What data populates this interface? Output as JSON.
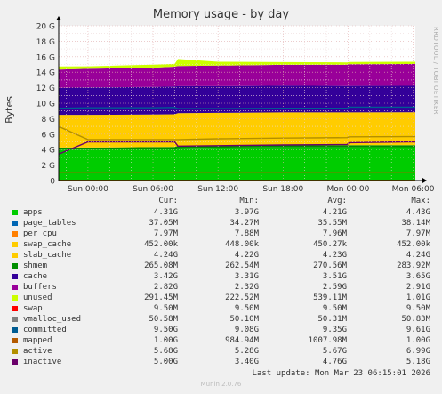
{
  "header": {
    "title": "Memory usage - by day",
    "side_text": "RRDTOOL / TOBI OETIKER",
    "footer": "Last update: Mon Mar 23 06:15:01 2026",
    "generator": "Munin 2.0.76"
  },
  "legend_headers": [
    "Cur:",
    "Min:",
    "Avg:",
    "Max:"
  ],
  "legend": [
    {
      "name": "apps",
      "color": "#00cc00",
      "cur": "4.31G",
      "min": "3.97G",
      "avg": "4.21G",
      "max": "4.43G"
    },
    {
      "name": "page_tables",
      "color": "#0066b3",
      "cur": "37.05M",
      "min": "34.27M",
      "avg": "35.55M",
      "max": "38.14M"
    },
    {
      "name": "per_cpu",
      "color": "#ff8000",
      "cur": "7.97M",
      "min": "7.88M",
      "avg": "7.96M",
      "max": "7.97M"
    },
    {
      "name": "swap_cache",
      "color": "#ffcc00",
      "cur": "452.00k",
      "min": "448.00k",
      "avg": "450.27k",
      "max": "452.00k"
    },
    {
      "name": "slab_cache",
      "color": "#ffcc00",
      "cur": "4.24G",
      "min": "4.22G",
      "avg": "4.23G",
      "max": "4.24G"
    },
    {
      "name": "shmem",
      "color": "#008f00",
      "cur": "265.08M",
      "min": "262.54M",
      "avg": "270.56M",
      "max": "283.92M"
    },
    {
      "name": "cache",
      "color": "#330099",
      "cur": "3.42G",
      "min": "3.31G",
      "avg": "3.51G",
      "max": "3.65G"
    },
    {
      "name": "buffers",
      "color": "#990099",
      "cur": "2.82G",
      "min": "2.32G",
      "avg": "2.59G",
      "max": "2.91G"
    },
    {
      "name": "unused",
      "color": "#ccff00",
      "cur": "291.45M",
      "min": "222.52M",
      "avg": "539.11M",
      "max": "1.01G"
    },
    {
      "name": "swap",
      "color": "#ff0000",
      "cur": "9.50M",
      "min": "9.50M",
      "avg": "9.50M",
      "max": "9.50M"
    },
    {
      "name": "vmalloc_used",
      "color": "#808080",
      "cur": "50.58M",
      "min": "50.10M",
      "avg": "50.31M",
      "max": "50.83M"
    },
    {
      "name": "committed",
      "color": "#005c92",
      "cur": "9.50G",
      "min": "9.08G",
      "avg": "9.35G",
      "max": "9.61G"
    },
    {
      "name": "mapped",
      "color": "#b35a00",
      "cur": "1.00G",
      "min": "984.94M",
      "avg": "1007.98M",
      "max": "1.00G"
    },
    {
      "name": "active",
      "color": "#b38f00",
      "cur": "5.68G",
      "min": "5.28G",
      "avg": "5.67G",
      "max": "6.99G"
    },
    {
      "name": "inactive",
      "color": "#6b006b",
      "cur": "5.00G",
      "min": "3.40G",
      "avg": "4.76G",
      "max": "5.18G"
    }
  ],
  "chart_data": {
    "type": "area",
    "title": "Memory usage - by day",
    "ylabel": "Bytes",
    "ylim": [
      0,
      20
    ],
    "y_unit": "G",
    "y_ticks": [
      "0",
      "2 G",
      "4 G",
      "6 G",
      "8 G",
      "10 G",
      "12 G",
      "14 G",
      "16 G",
      "18 G",
      "20 G"
    ],
    "x_ticks": [
      "Sun 00:00",
      "Sun 06:00",
      "Sun 12:00",
      "Sun 18:00",
      "Mon 00:00",
      "Mon 06:00"
    ],
    "x_tick_hours": [
      0,
      6,
      12,
      18,
      24,
      30
    ],
    "xlim_hours": [
      -2.7,
      30.2
    ],
    "x": [
      -2.7,
      0.0,
      6.0,
      8.0,
      8.3,
      12.0,
      18.0,
      23.9,
      24.1,
      29.5,
      30.2
    ],
    "stacked_series": [
      {
        "name": "apps",
        "color": "#00cc00",
        "values": [
          4.0,
          4.0,
          4.05,
          4.05,
          4.2,
          4.25,
          4.3,
          4.3,
          4.3,
          4.31,
          4.31
        ]
      },
      {
        "name": "shmem",
        "color": "#008f00",
        "values": [
          0.27,
          0.27,
          0.27,
          0.28,
          0.27,
          0.27,
          0.27,
          0.26,
          0.27,
          0.27,
          0.27
        ]
      },
      {
        "name": "slab_cache",
        "color": "#ffcc00",
        "values": [
          4.22,
          4.22,
          4.22,
          4.23,
          4.23,
          4.23,
          4.23,
          4.24,
          4.24,
          4.24,
          4.24
        ]
      },
      {
        "name": "cache",
        "color": "#330099",
        "values": [
          3.5,
          3.55,
          3.55,
          3.6,
          3.5,
          3.45,
          3.45,
          3.42,
          3.42,
          3.42,
          3.42
        ]
      },
      {
        "name": "buffers",
        "color": "#990099",
        "values": [
          2.35,
          2.4,
          2.5,
          2.55,
          2.6,
          2.65,
          2.7,
          2.75,
          2.8,
          2.82,
          2.82
        ]
      },
      {
        "name": "unused",
        "color": "#ccff00",
        "values": [
          0.4,
          0.32,
          0.38,
          0.36,
          0.9,
          0.5,
          0.35,
          0.3,
          0.29,
          0.29,
          0.29
        ]
      }
    ],
    "line_series": [
      {
        "name": "committed",
        "color": "#005c92",
        "values": [
          9.35,
          9.4,
          9.4,
          9.45,
          9.3,
          9.3,
          9.35,
          9.35,
          9.5,
          9.5,
          9.5
        ]
      },
      {
        "name": "mapped",
        "color": "#b35a00",
        "values": [
          1.0,
          1.0,
          1.0,
          1.0,
          1.0,
          1.0,
          1.0,
          1.0,
          1.0,
          1.0,
          1.0
        ]
      },
      {
        "name": "active",
        "color": "#b38f00",
        "values": [
          6.99,
          5.3,
          5.3,
          5.3,
          5.3,
          5.4,
          5.5,
          5.55,
          5.65,
          5.68,
          5.68
        ]
      },
      {
        "name": "inactive",
        "color": "#6b006b",
        "values": [
          3.4,
          5.0,
          5.0,
          5.0,
          4.45,
          4.5,
          4.6,
          4.65,
          4.9,
          5.0,
          5.0
        ]
      },
      {
        "name": "swap",
        "color": "#ff0000",
        "values": [
          0.0095,
          0.0095,
          0.0095,
          0.0095,
          0.0095,
          0.0095,
          0.0095,
          0.0095,
          0.0095,
          0.0095,
          0.0095
        ]
      }
    ],
    "grid": true
  }
}
